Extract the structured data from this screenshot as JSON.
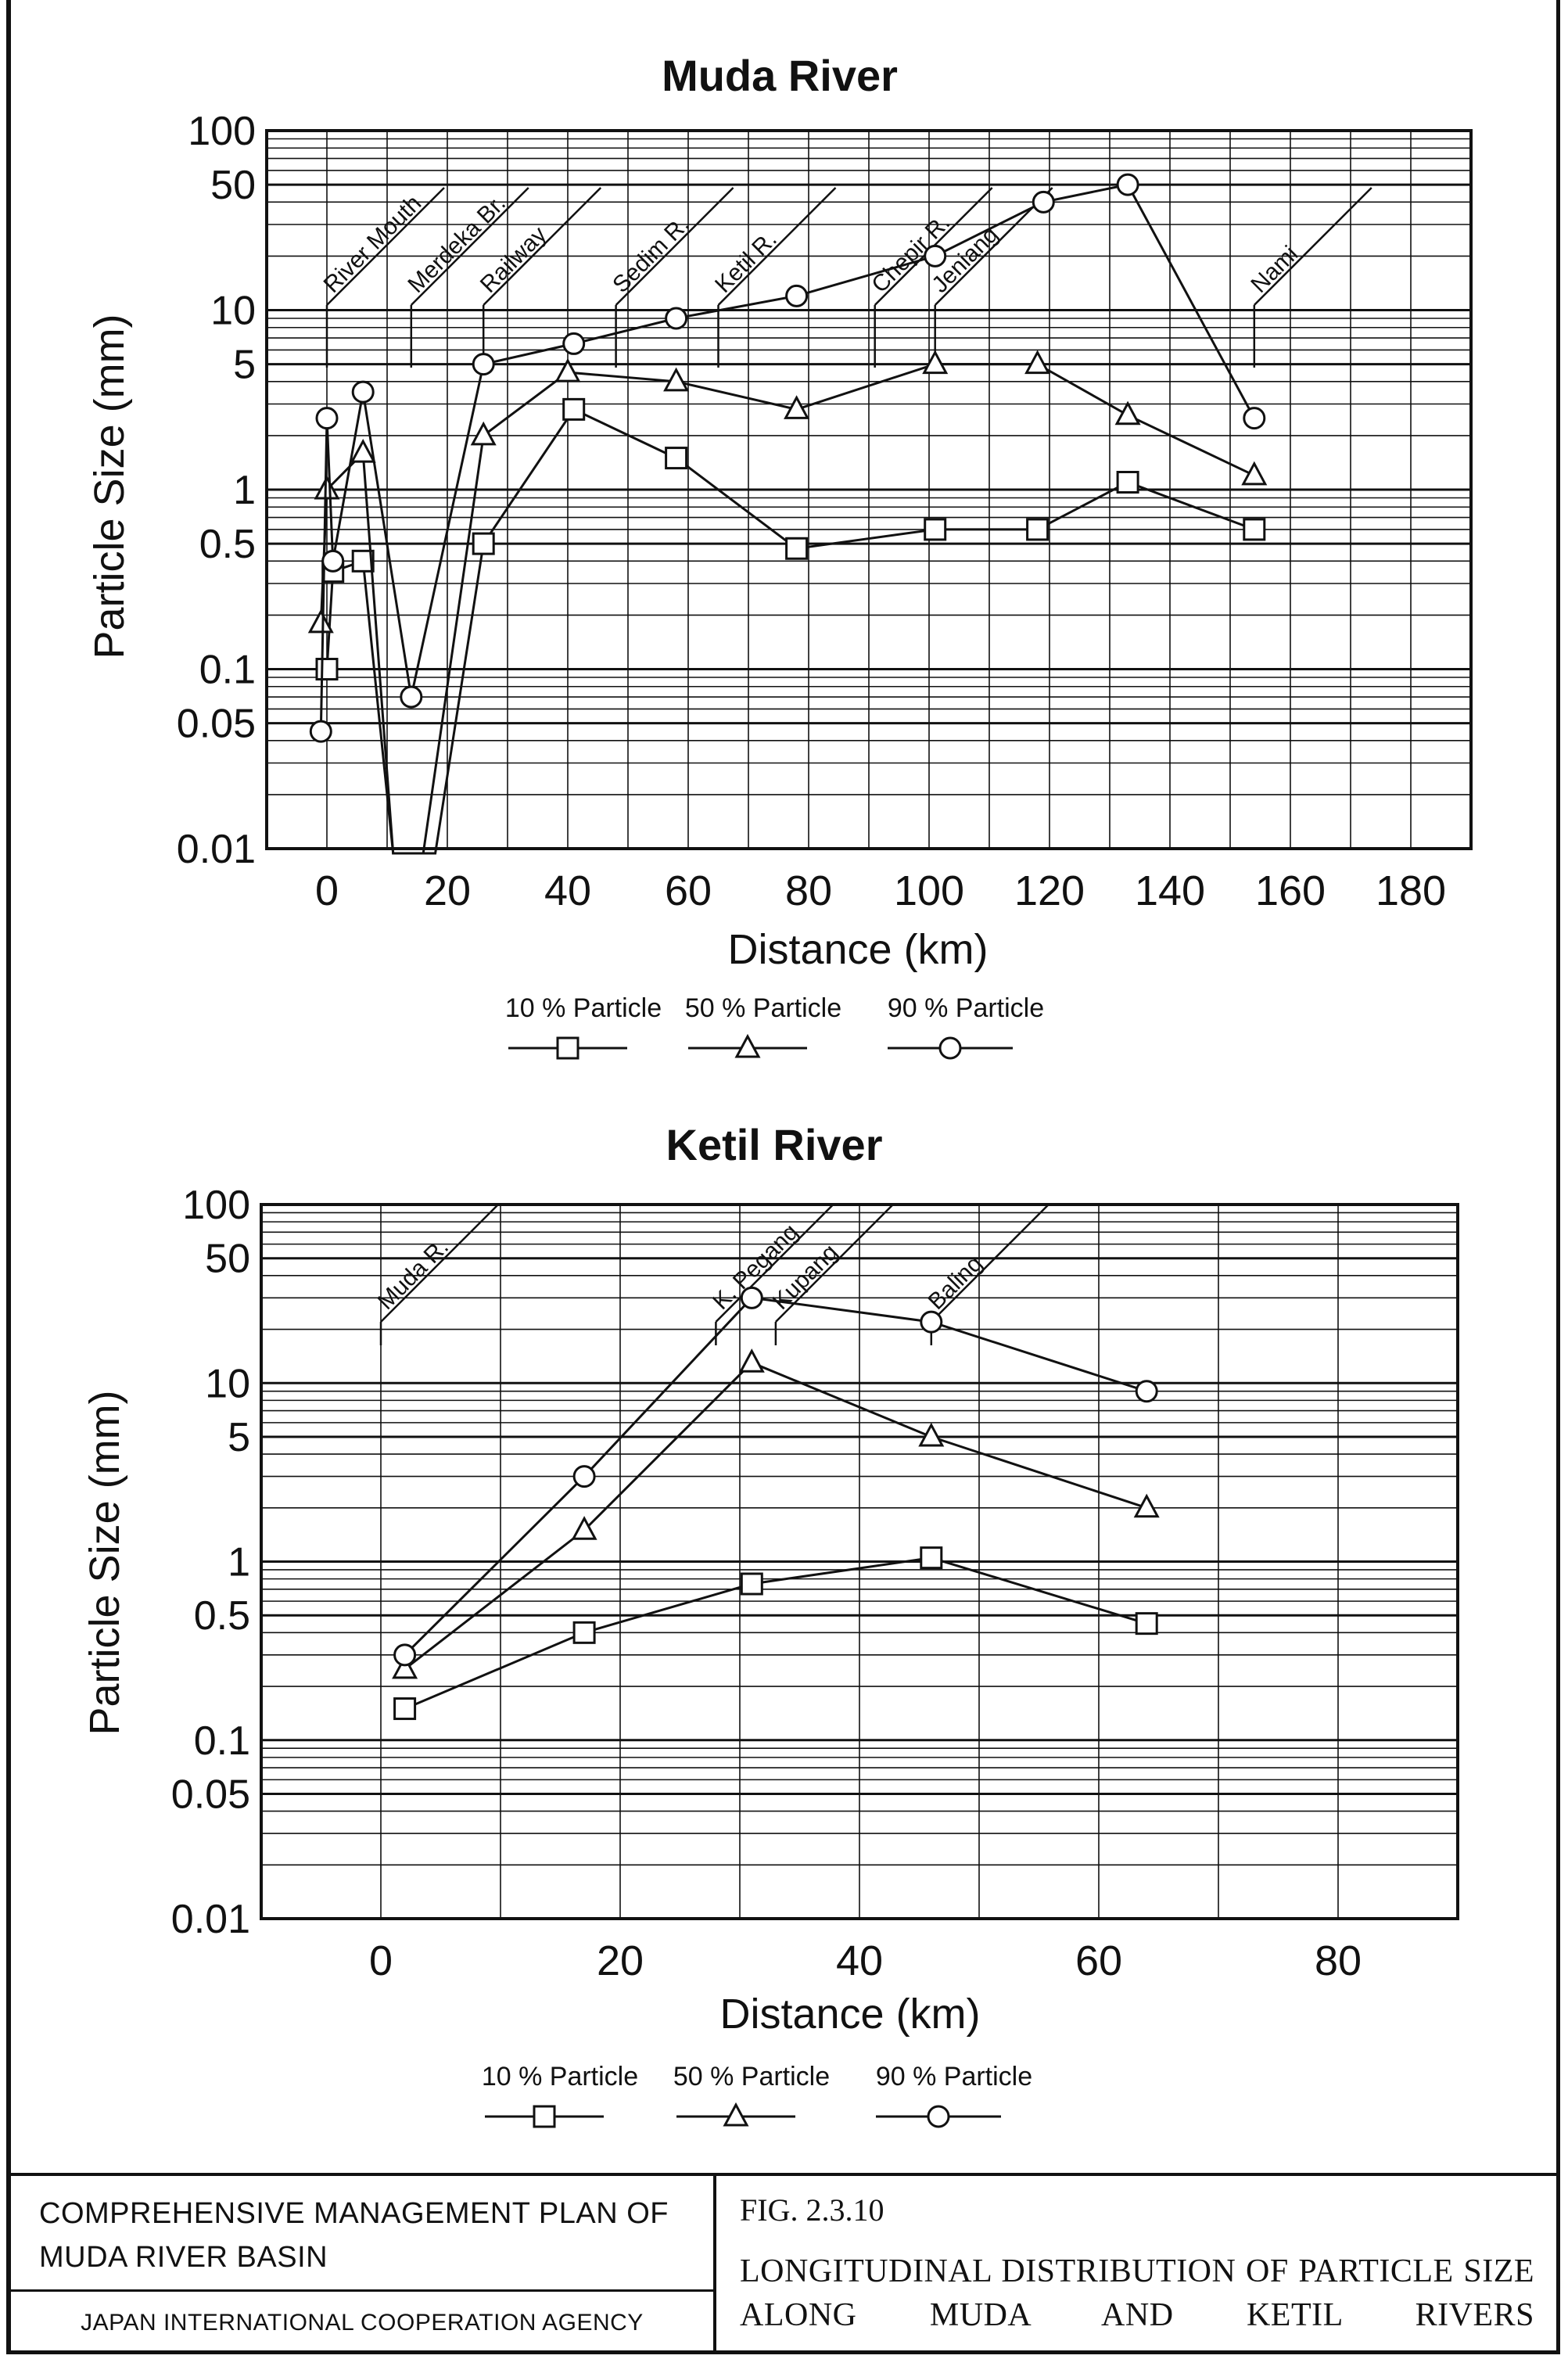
{
  "charts": {
    "muda": {
      "title": "Muda River",
      "xlabel": "Distance (km)",
      "ylabel": "Particle Size (mm)"
    },
    "ketil": {
      "title": "Ketil River",
      "xlabel": "Distance (km)",
      "ylabel": "Particle Size (mm)"
    }
  },
  "chart_data": [
    {
      "type": "line",
      "title": "Muda River",
      "xlabel": "Distance (km)",
      "ylabel": "Particle Size (mm)",
      "xlim": [
        -10,
        190
      ],
      "ylim": [
        0.01,
        100
      ],
      "yscale": "log",
      "xticks": [
        0,
        20,
        40,
        60,
        80,
        100,
        120,
        140,
        160,
        180
      ],
      "yticks": [
        0.01,
        0.05,
        0.1,
        0.5,
        1,
        5,
        10,
        50,
        100
      ],
      "ytick_labels": [
        "0.01",
        "0.05",
        "0.1",
        "0.5",
        "1",
        "5",
        "10",
        "50",
        "100"
      ],
      "grid": true,
      "legend": "bottom",
      "series": [
        {
          "name": "10 % Particle",
          "marker": "square",
          "points": [
            [
              0,
              0.1
            ],
            [
              1,
              0.35
            ],
            [
              6,
              0.4
            ],
            [
              11,
              0.001
            ],
            [
              18,
              0.001
            ],
            [
              26,
              0.5
            ],
            [
              41,
              2.8
            ],
            [
              58,
              1.5
            ],
            [
              78,
              0.47
            ],
            [
              101,
              0.6
            ],
            [
              118,
              0.6
            ],
            [
              133,
              1.1
            ],
            [
              154,
              0.6
            ]
          ]
        },
        {
          "name": "50 % Particle",
          "marker": "triangle",
          "points": [
            [
              -1,
              0.18
            ],
            [
              0,
              1.0
            ],
            [
              6,
              1.6
            ],
            [
              11,
              0.001
            ],
            [
              16,
              0.001
            ],
            [
              26,
              2.0
            ],
            [
              40,
              4.5
            ],
            [
              58,
              4.0
            ],
            [
              78,
              2.8
            ],
            [
              101,
              5.0
            ],
            [
              118,
              5.0
            ],
            [
              133,
              2.6
            ],
            [
              154,
              1.2
            ]
          ]
        },
        {
          "name": "90 % Particle",
          "marker": "circle",
          "points": [
            [
              -1,
              0.045
            ],
            [
              0,
              2.5
            ],
            [
              1,
              0.4
            ],
            [
              6,
              3.5
            ],
            [
              14,
              0.07
            ],
            [
              26,
              5.0
            ],
            [
              41,
              6.5
            ],
            [
              58,
              9.0
            ],
            [
              78,
              12.0
            ],
            [
              101,
              20.0
            ],
            [
              119,
              40.0
            ],
            [
              133,
              50.0
            ],
            [
              154,
              2.5
            ]
          ]
        }
      ],
      "annotations": [
        {
          "text": "River Mouth",
          "x": 0
        },
        {
          "text": "Merdeka Br.",
          "x": 14
        },
        {
          "text": "Railway",
          "x": 26
        },
        {
          "text": "Sedim R.",
          "x": 48
        },
        {
          "text": "Ketil R.",
          "x": 65
        },
        {
          "text": "Chepir R.",
          "x": 91
        },
        {
          "text": "Jeniang",
          "x": 101
        },
        {
          "text": "Nami",
          "x": 154
        }
      ]
    },
    {
      "type": "line",
      "title": "Ketil River",
      "xlabel": "Distance (km)",
      "ylabel": "Particle Size (mm)",
      "xlim": [
        -10,
        90
      ],
      "ylim": [
        0.01,
        100
      ],
      "yscale": "log",
      "xticks": [
        0,
        20,
        40,
        60,
        80
      ],
      "yticks": [
        0.01,
        0.05,
        0.1,
        0.5,
        1,
        5,
        10,
        50,
        100
      ],
      "ytick_labels": [
        "0.01",
        "0.05",
        "0.1",
        "0.5",
        "1",
        "5",
        "10",
        "50",
        "100"
      ],
      "grid": true,
      "legend": "bottom",
      "series": [
        {
          "name": "10 % Particle",
          "marker": "square",
          "points": [
            [
              2,
              0.15
            ],
            [
              17,
              0.4
            ],
            [
              31,
              0.75
            ],
            [
              46,
              1.05
            ],
            [
              64,
              0.45
            ]
          ]
        },
        {
          "name": "50 % Particle",
          "marker": "triangle",
          "points": [
            [
              2,
              0.25
            ],
            [
              17,
              1.5
            ],
            [
              31,
              13.0
            ],
            [
              46,
              5.0
            ],
            [
              64,
              2.0
            ]
          ]
        },
        {
          "name": "90 % Particle",
          "marker": "circle",
          "points": [
            [
              2,
              0.3
            ],
            [
              17,
              3.0
            ],
            [
              31,
              30.0
            ],
            [
              46,
              22.0
            ],
            [
              64,
              9.0
            ]
          ]
        }
      ],
      "annotations": [
        {
          "text": "Muda R.",
          "x": 0
        },
        {
          "text": "K. Pegang",
          "x": 28
        },
        {
          "text": "Kupang",
          "x": 33
        },
        {
          "text": "Baling",
          "x": 46
        }
      ]
    }
  ],
  "legend": {
    "items": [
      "10 % Particle",
      "50 % Particle",
      "90 % Particle"
    ]
  },
  "footer": {
    "org_title": "COMPREHENSIVE MANAGEMENT PLAN OF MUDA RIVER BASIN",
    "agency": "JAPAN INTERNATIONAL COOPERATION AGENCY",
    "fig_number": "FIG. 2.3.10",
    "fig_title": "LONGITUDINAL DISTRIBUTION OF PARTICLE SIZE ALONG MUDA AND KETIL RIVERS"
  }
}
